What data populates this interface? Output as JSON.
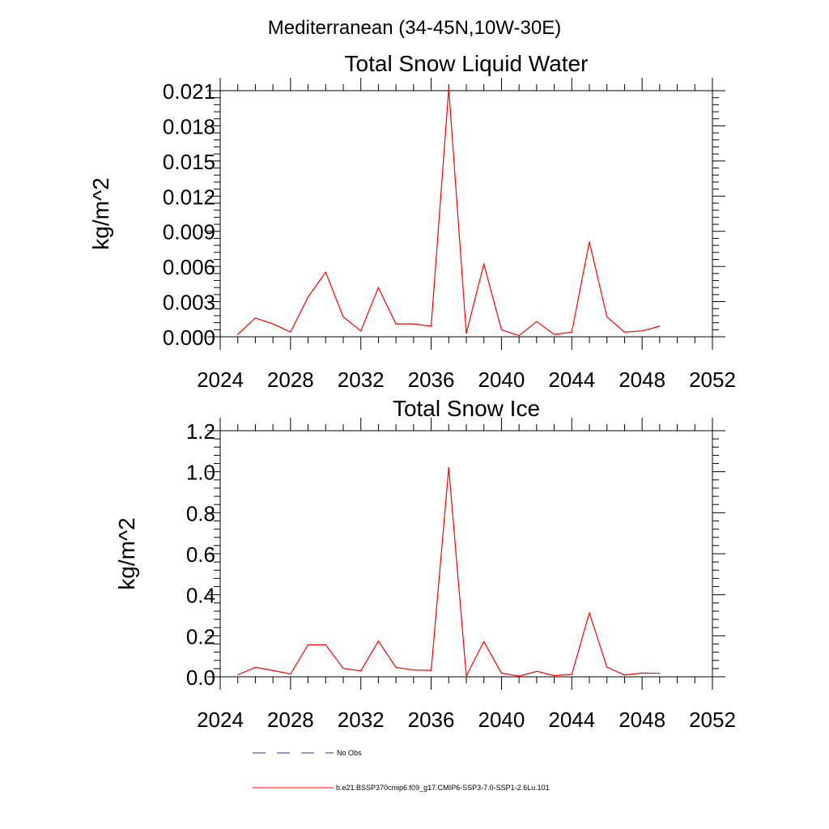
{
  "main_title": "Mediterranean (34-45N,10W-30E)",
  "legend": [
    {
      "label": "No Obs",
      "color": "#33339a",
      "dash": true
    },
    {
      "label": "b.e21.BSSP370cmip6.f09_g17.CMIP6-SSP3-7.0-SSP1-2.6Lu.101",
      "color": "#ff0000",
      "dash": false
    }
  ],
  "chart_data": [
    {
      "type": "line",
      "title": "Total Snow Liquid Water",
      "ylabel": "kg/m^2",
      "xlim": [
        2024,
        2052
      ],
      "ylim": [
        0,
        0.021
      ],
      "xticks": [
        "2024",
        "2028",
        "2032",
        "2036",
        "2040",
        "2044",
        "2048",
        "2052"
      ],
      "yticks": [
        "0.000",
        "0.003",
        "0.006",
        "0.009",
        "0.012",
        "0.015",
        "0.018",
        "0.021"
      ],
      "line_color": "#ff0000",
      "x": [
        2025,
        2026,
        2027,
        2028,
        2029,
        2030,
        2031,
        2032,
        2033,
        2034,
        2035,
        2036,
        2037,
        2038,
        2039,
        2040,
        2041,
        2042,
        2043,
        2044,
        2045,
        2046,
        2047,
        2048,
        2049
      ],
      "series": [
        {
          "name": "b.e21.BSSP370cmip6.f09_g17.CMIP6-SSP3-7.0-SSP1-2.6Lu.101",
          "values": [
            0.0002,
            0.0016,
            0.0011,
            0.0004,
            0.0034,
            0.0055,
            0.0017,
            0.0005,
            0.0042,
            0.0011,
            0.0011,
            0.0009,
            0.0212,
            0.0003,
            0.0062,
            0.0006,
            0.0001,
            0.0013,
            0.0002,
            0.0004,
            0.0081,
            0.0017,
            0.0004,
            0.0005,
            0.0009
          ]
        }
      ]
    },
    {
      "type": "line",
      "title": "Total Snow Ice",
      "ylabel": "kg/m^2",
      "xlim": [
        2024,
        2052
      ],
      "ylim": [
        0,
        1.2
      ],
      "xticks": [
        "2024",
        "2028",
        "2032",
        "2036",
        "2040",
        "2044",
        "2048",
        "2052"
      ],
      "yticks": [
        "0.0",
        "0.2",
        "0.4",
        "0.6",
        "0.8",
        "1.0",
        "1.2"
      ],
      "line_color": "#ff0000",
      "x": [
        2025,
        2026,
        2027,
        2028,
        2029,
        2030,
        2031,
        2032,
        2033,
        2034,
        2035,
        2036,
        2037,
        2038,
        2039,
        2040,
        2041,
        2042,
        2043,
        2044,
        2045,
        2046,
        2047,
        2048,
        2049
      ],
      "series": [
        {
          "name": "b.e21.BSSP370cmip6.f09_g17.CMIP6-SSP3-7.0-SSP1-2.6Lu.101",
          "values": [
            0.01,
            0.046,
            0.031,
            0.014,
            0.156,
            0.156,
            0.041,
            0.029,
            0.174,
            0.046,
            0.033,
            0.031,
            1.02,
            0.004,
            0.172,
            0.018,
            0.003,
            0.027,
            0.006,
            0.012,
            0.312,
            0.047,
            0.009,
            0.018,
            0.017
          ]
        }
      ]
    }
  ]
}
